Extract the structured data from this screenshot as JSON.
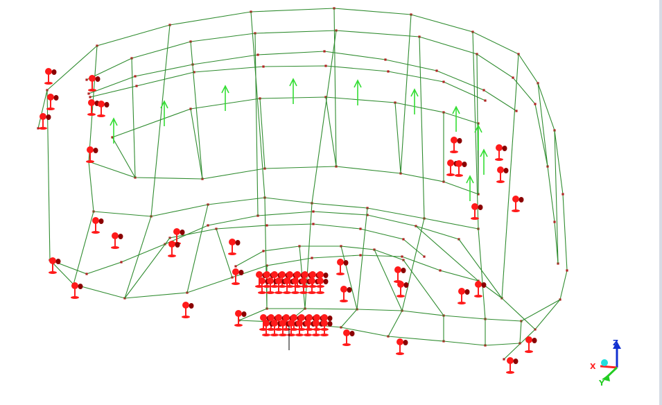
{
  "colors": {
    "background": "#ffffff",
    "mesh_line": "#2e8b2e",
    "mesh_node": "#b22222",
    "constraint": "#ff1a1a",
    "constraint_dark": "#8b0000",
    "load_arrow": "#33dd33",
    "axis_x": "#ff2020",
    "axis_y": "#22cc22",
    "axis_z": "#1030d0",
    "axis_origin": "#22dddd"
  },
  "triad": {
    "x_label": "X",
    "y_label": "Y",
    "z_label": "Z"
  },
  "icons": {
    "constraint": "fixed-support-icon",
    "load": "force-arrow-icon",
    "triad": "coordinate-axes-icon"
  }
}
